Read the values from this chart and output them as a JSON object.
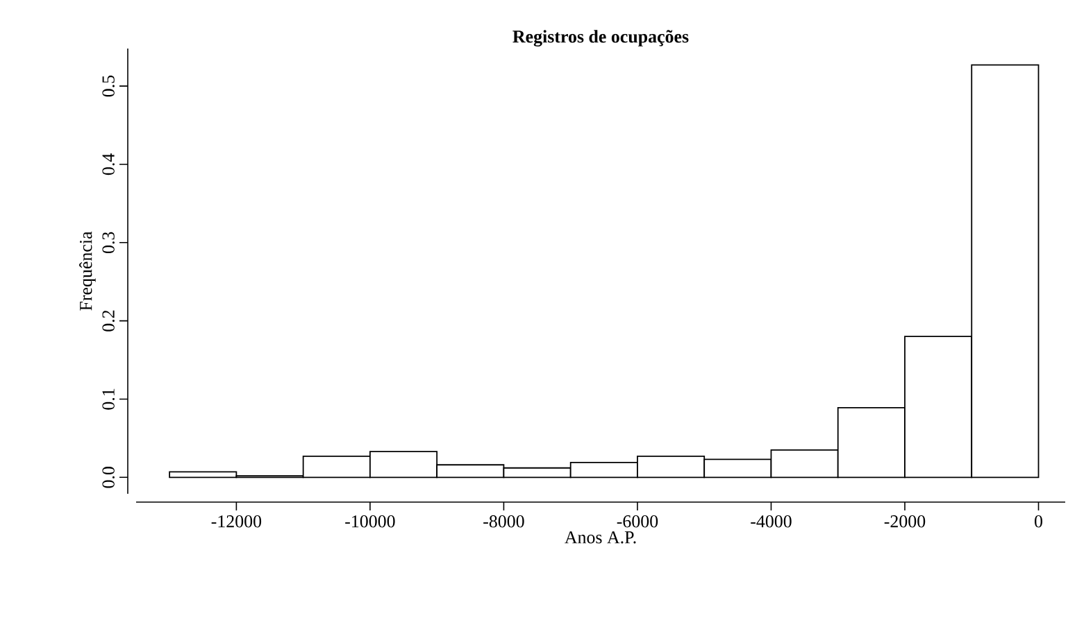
{
  "chart_data": {
    "type": "histogram",
    "title": "Registros de ocupações",
    "xlabel": "Anos A.P.",
    "ylabel": "Frequência",
    "bins": [
      -13000,
      -12000,
      -11000,
      -10000,
      -9000,
      -8000,
      -7000,
      -6000,
      -5000,
      -4000,
      -3000,
      -2000,
      -1000,
      0
    ],
    "values": [
      0.007,
      0.002,
      0.027,
      0.033,
      0.016,
      0.012,
      0.019,
      0.027,
      0.023,
      0.035,
      0.089,
      0.18,
      0.527
    ],
    "color": "#ffffff",
    "xlim": [
      -13500,
      400
    ],
    "ylim": [
      -0.021,
      0.548
    ],
    "xticks": [
      -12000,
      -10000,
      -8000,
      -6000,
      -4000,
      -2000,
      0
    ],
    "yticks": [
      {
        "value": 0,
        "label": "0.0"
      },
      {
        "value": 0.1,
        "label": "0.1"
      },
      {
        "value": 0.2,
        "label": "0.2"
      },
      {
        "value": 0.3,
        "label": "0.3"
      },
      {
        "value": 0.4,
        "label": "0.4"
      },
      {
        "value": 0.5,
        "label": "0.5"
      }
    ]
  }
}
